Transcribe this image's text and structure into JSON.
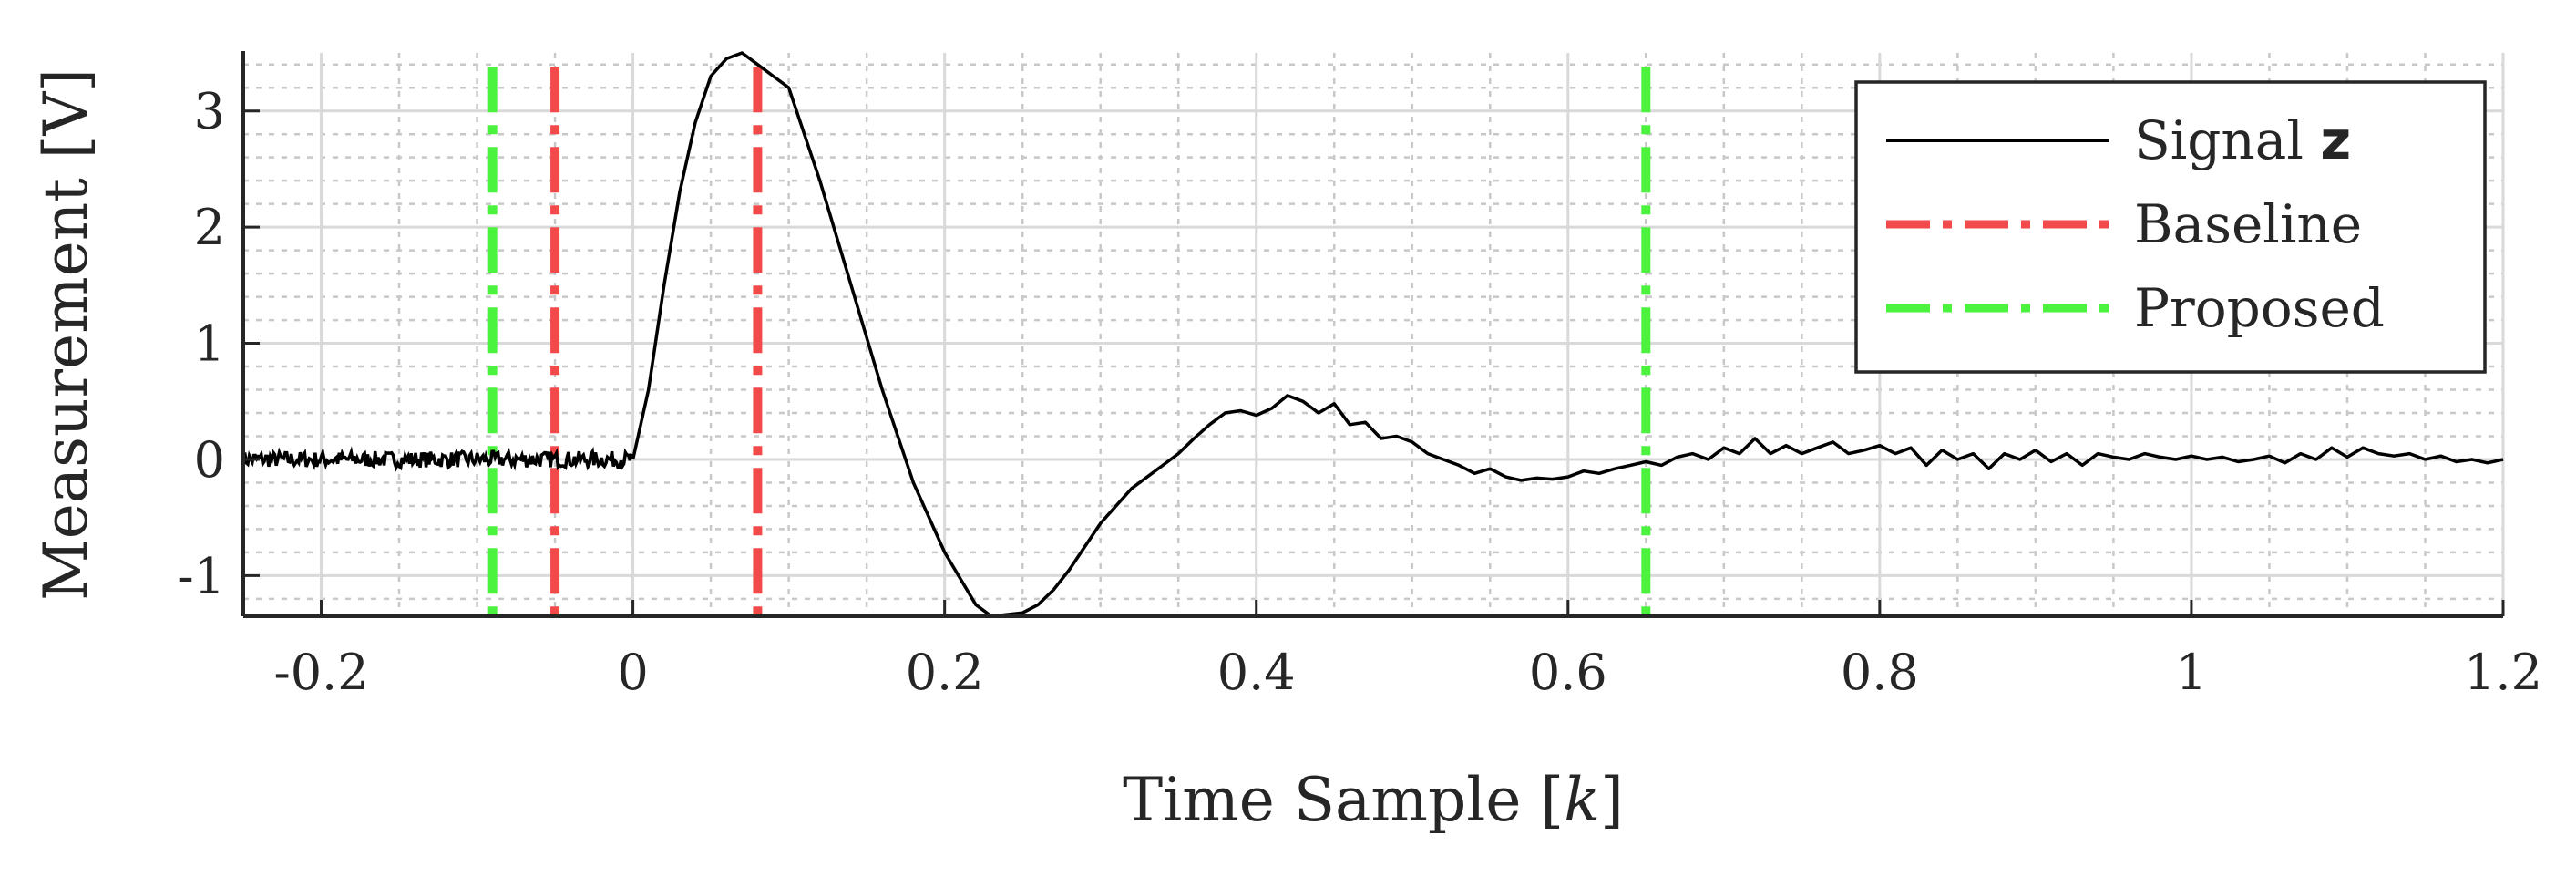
{
  "chart_data": {
    "type": "line",
    "xlabel": "Time Sample [k]",
    "ylabel": "Measurement [V]",
    "xlim": [
      -0.25,
      1.2
    ],
    "ylim": [
      -1.35,
      3.5
    ],
    "grid": true,
    "minor_grid": true,
    "legend_position": "top-right",
    "x_ticks": [
      -0.2,
      0,
      0.2,
      0.4,
      0.6,
      0.8,
      1,
      1.2
    ],
    "x_tick_labels": [
      "-0.2",
      "0",
      "0.2",
      "0.4",
      "0.6",
      "0.8",
      "1",
      "1.2"
    ],
    "y_ticks": [
      -1,
      0,
      1,
      2,
      3
    ],
    "y_tick_labels": [
      "-1",
      "0",
      "1",
      "2",
      "3"
    ],
    "series": [
      {
        "name": "Signal z",
        "color": "#000000",
        "style": "solid",
        "noise_segment": {
          "x_start": -0.25,
          "x_end": 0.0,
          "level": 0.0,
          "amplitude": 0.07
        },
        "x": [
          0.0,
          0.01,
          0.02,
          0.03,
          0.04,
          0.05,
          0.06,
          0.07,
          0.08,
          0.09,
          0.1,
          0.12,
          0.14,
          0.16,
          0.18,
          0.2,
          0.22,
          0.23,
          0.25,
          0.26,
          0.27,
          0.28,
          0.29,
          0.3,
          0.31,
          0.32,
          0.34,
          0.35,
          0.36,
          0.37,
          0.38,
          0.39,
          0.4,
          0.41,
          0.42,
          0.43,
          0.44,
          0.45,
          0.46,
          0.47,
          0.48,
          0.49,
          0.5,
          0.51,
          0.52,
          0.53,
          0.54,
          0.55,
          0.56,
          0.57,
          0.58,
          0.59,
          0.6,
          0.61,
          0.62,
          0.63,
          0.64,
          0.65,
          0.66,
          0.67,
          0.68,
          0.69,
          0.7,
          0.71,
          0.72,
          0.73,
          0.74,
          0.75,
          0.76,
          0.77,
          0.78,
          0.79,
          0.8,
          0.81,
          0.82,
          0.83,
          0.84,
          0.85,
          0.86,
          0.87,
          0.88,
          0.89,
          0.9,
          0.91,
          0.92,
          0.93,
          0.94,
          0.95,
          0.96,
          0.97,
          0.98,
          0.99,
          1.0,
          1.01,
          1.02,
          1.03,
          1.04,
          1.05,
          1.06,
          1.07,
          1.08,
          1.09,
          1.1,
          1.11,
          1.12,
          1.13,
          1.14,
          1.15,
          1.16,
          1.17,
          1.18,
          1.19,
          1.2
        ],
        "y": [
          0.0,
          0.6,
          1.5,
          2.3,
          2.9,
          3.3,
          3.45,
          3.5,
          3.4,
          3.3,
          3.2,
          2.4,
          1.5,
          0.6,
          -0.2,
          -0.8,
          -1.25,
          -1.35,
          -1.32,
          -1.25,
          -1.12,
          -0.95,
          -0.75,
          -0.55,
          -0.4,
          -0.25,
          -0.05,
          0.05,
          0.18,
          0.3,
          0.4,
          0.42,
          0.38,
          0.44,
          0.55,
          0.5,
          0.4,
          0.48,
          0.3,
          0.32,
          0.18,
          0.2,
          0.15,
          0.05,
          0.0,
          -0.05,
          -0.12,
          -0.08,
          -0.15,
          -0.18,
          -0.16,
          -0.17,
          -0.15,
          -0.1,
          -0.12,
          -0.08,
          -0.05,
          -0.02,
          -0.05,
          0.02,
          0.05,
          0.0,
          0.1,
          0.05,
          0.18,
          0.05,
          0.12,
          0.05,
          0.1,
          0.15,
          0.05,
          0.08,
          0.12,
          0.05,
          0.1,
          -0.05,
          0.08,
          0.0,
          0.05,
          -0.08,
          0.05,
          0.0,
          0.08,
          -0.02,
          0.05,
          -0.05,
          0.05,
          0.02,
          0.0,
          0.05,
          0.02,
          0.0,
          0.03,
          0.0,
          0.02,
          -0.02,
          0.0,
          0.03,
          -0.03,
          0.05,
          0.0,
          0.1,
          0.02,
          0.1,
          0.05,
          0.03,
          0.05,
          0.0,
          0.03,
          -0.02,
          0.0,
          -0.03,
          0.0
        ]
      },
      {
        "name": "Baseline",
        "color": "#f24a4a",
        "style": "dash-dot",
        "vlines": [
          -0.05,
          0.08
        ]
      },
      {
        "name": "Proposed",
        "color": "#4bf23e",
        "style": "dash-dot",
        "vlines": [
          -0.09,
          0.65
        ]
      }
    ]
  }
}
